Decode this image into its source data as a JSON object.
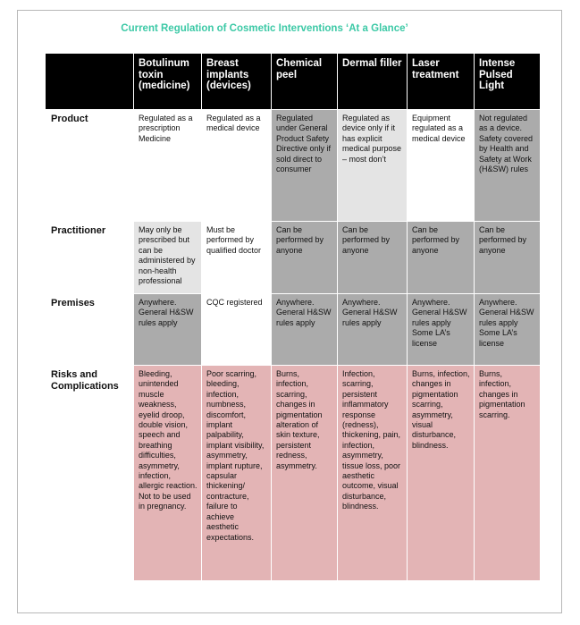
{
  "title": "Current Regulation of Cosmetic Interventions ‘At a Glance’",
  "columns": [
    "Botulinum toxin (medicine)",
    "Breast implants (devices)",
    "Chemical peel",
    "Dermal filler",
    "Laser treatment",
    "Intense Pulsed Light"
  ],
  "rows": [
    {
      "label": "Product",
      "cells": [
        {
          "text": "Regulated as a prescription Medicine",
          "shade": "white"
        },
        {
          "text": "Regulated as a medical device",
          "shade": "white"
        },
        {
          "text": "Regulated under General Product Safety Directive only if sold direct to consumer",
          "shade": "grey"
        },
        {
          "text": "Regulated as device only if it has explicit medical purpose – most don’t",
          "shade": "light-grey"
        },
        {
          "text": "Equipment regulated as a medical device",
          "shade": "white"
        },
        {
          "text": "Not regulated as a device. Safety covered by Health and Safety at Work (H&SW) rules",
          "shade": "grey"
        }
      ]
    },
    {
      "label": "Practitioner",
      "cells": [
        {
          "text": "May only be prescribed but can be administered by non-health professional",
          "shade": "light-grey"
        },
        {
          "text": "Must be performed by qualified doctor",
          "shade": "white"
        },
        {
          "text": "Can be performed by anyone",
          "shade": "grey"
        },
        {
          "text": "Can be performed by anyone",
          "shade": "grey"
        },
        {
          "text": "Can be performed by anyone",
          "shade": "grey"
        },
        {
          "text": "Can be performed by anyone",
          "shade": "grey"
        }
      ]
    },
    {
      "label": "Premises",
      "cells": [
        {
          "text": "Anywhere. General H&SW rules apply",
          "shade": "grey"
        },
        {
          "text": "CQC registered",
          "shade": "white"
        },
        {
          "text": "Anywhere. General H&SW rules apply",
          "shade": "grey"
        },
        {
          "text": "Anywhere. General H&SW rules apply",
          "shade": "grey"
        },
        {
          "text": "Anywhere. General H&SW rules apply Some LA’s license",
          "shade": "grey"
        },
        {
          "text": "Anywhere. General H&SW rules apply Some LA’s license",
          "shade": "grey"
        }
      ]
    },
    {
      "label": "Risks and Complications",
      "cells": [
        {
          "text": "Bleeding, unintended muscle weakness, eyelid droop, double vision, speech and breathing difficulties, asymmetry, infection, allergic reaction. Not to be used in pregnancy.",
          "shade": "pink"
        },
        {
          "text": "Poor scarring, bleeding, infection, numbness, discomfort, implant palpability, implant visibility, asymmetry, implant rupture, capsular thickening/ contracture, failure to achieve aesthetic expectations.",
          "shade": "pink"
        },
        {
          "text": "Burns, infection, scarring, changes in pigmentation alteration of skin texture, persistent redness, asymmetry.",
          "shade": "pink"
        },
        {
          "text": "Infection, scarring, persistent inflammatory response (redness), thickening, pain, infection, asymmetry, tissue loss, poor aesthetic outcome, visual disturbance, blindness.",
          "shade": "pink"
        },
        {
          "text": "Burns, infection, changes in pigmentation scarring, asymmetry, visual disturbance, blindness.",
          "shade": "pink"
        },
        {
          "text": "Burns, infection, changes in pigmentation scarring.",
          "shade": "pink"
        }
      ]
    }
  ],
  "colors": {
    "title": "#3cc9a6",
    "header_bg": "#000000",
    "white": "#ffffff",
    "light-grey": "#e4e4e4",
    "grey": "#ababab",
    "pink": "#e3b4b5"
  }
}
